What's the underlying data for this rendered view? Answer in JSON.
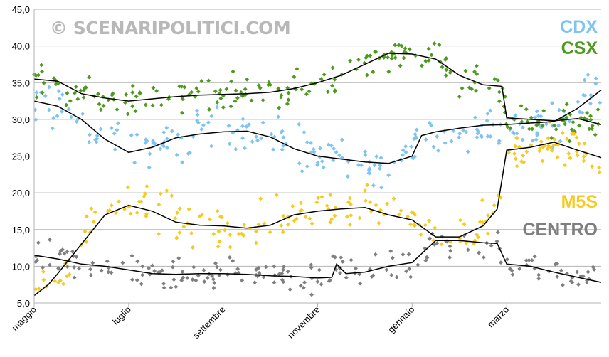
{
  "watermark": "© SCENARIPOLITICI.COM",
  "chart_data": {
    "type": "scatter",
    "title": "",
    "xlabel": "",
    "ylabel": "",
    "ylim": [
      5,
      45
    ],
    "y_ticks": [
      "5,0",
      "10,0",
      "15,0",
      "20,0",
      "25,0",
      "30,0",
      "35,0",
      "40,0",
      "45,0"
    ],
    "x_ticks": [
      "maggio",
      "luglio",
      "settembre",
      "novembre",
      "gennaio",
      "marzo"
    ],
    "x_domain_months": [
      0,
      12
    ],
    "x_tick_months": [
      0,
      2,
      4,
      6,
      8,
      10
    ],
    "grid": "horizontal",
    "legend_placement": "right",
    "series": [
      {
        "name": "CDX",
        "color": "#7fc4f0",
        "trend": [
          [
            0,
            32.5
          ],
          [
            0.5,
            31.8
          ],
          [
            1,
            30
          ],
          [
            1.5,
            27.3
          ],
          [
            2,
            25.5
          ],
          [
            2.5,
            26.2
          ],
          [
            3,
            27.5
          ],
          [
            3.5,
            28
          ],
          [
            4,
            28.3
          ],
          [
            4.5,
            28.4
          ],
          [
            5,
            27.6
          ],
          [
            5.5,
            26
          ],
          [
            6,
            25
          ],
          [
            6.5,
            24.6
          ],
          [
            7,
            24.2
          ],
          [
            7.5,
            24
          ],
          [
            8,
            25
          ],
          [
            8.2,
            27.8
          ],
          [
            8.5,
            28.3
          ],
          [
            9,
            28.8
          ],
          [
            9.5,
            29.2
          ],
          [
            10,
            29.3
          ],
          [
            10.5,
            29.5
          ],
          [
            11,
            29.7
          ],
          [
            11.5,
            31.5
          ],
          [
            12,
            34
          ]
        ]
      },
      {
        "name": "CSX",
        "color": "#4e9a1e",
        "trend": [
          [
            0,
            35.5
          ],
          [
            0.5,
            35.2
          ],
          [
            1,
            33.5
          ],
          [
            1.5,
            32.9
          ],
          [
            2,
            32.5
          ],
          [
            2.5,
            32.8
          ],
          [
            3,
            33.1
          ],
          [
            3.5,
            33.3
          ],
          [
            4,
            33.4
          ],
          [
            4.5,
            33.5
          ],
          [
            5,
            33.7
          ],
          [
            5.5,
            34.2
          ],
          [
            6,
            35
          ],
          [
            6.5,
            36
          ],
          [
            7,
            37.5
          ],
          [
            7.5,
            39
          ],
          [
            8,
            38.9
          ],
          [
            8.5,
            38.2
          ],
          [
            9,
            36
          ],
          [
            9.5,
            34.7
          ],
          [
            9.9,
            34.5
          ],
          [
            10,
            30.2
          ],
          [
            10.5,
            30
          ],
          [
            11,
            29.8
          ],
          [
            11.5,
            30.1
          ],
          [
            12,
            29.3
          ]
        ]
      },
      {
        "name": "M5S",
        "color": "#f5cb1f",
        "trend": [
          [
            0,
            6
          ],
          [
            0.3,
            7.5
          ],
          [
            0.5,
            9
          ],
          [
            1,
            13
          ],
          [
            1.5,
            17
          ],
          [
            2,
            18.3
          ],
          [
            2.5,
            17.5
          ],
          [
            3,
            16
          ],
          [
            3.5,
            15.6
          ],
          [
            4,
            15.5
          ],
          [
            4.5,
            15.2
          ],
          [
            5,
            15.6
          ],
          [
            5.5,
            17
          ],
          [
            6,
            17.5
          ],
          [
            6.5,
            17.8
          ],
          [
            7,
            18
          ],
          [
            7.5,
            17
          ],
          [
            8,
            16.3
          ],
          [
            8.5,
            14
          ],
          [
            9,
            14
          ],
          [
            9.5,
            15.5
          ],
          [
            9.8,
            17.8
          ],
          [
            10,
            25.8
          ],
          [
            10.5,
            26.2
          ],
          [
            11,
            26.9
          ],
          [
            11.5,
            25.8
          ],
          [
            12,
            24.8
          ]
        ]
      },
      {
        "name": "CENTRO",
        "color": "#7f7f7f",
        "trend": [
          [
            0,
            11.5
          ],
          [
            0.5,
            11
          ],
          [
            1,
            10.3
          ],
          [
            1.5,
            10
          ],
          [
            2,
            9.5
          ],
          [
            2.5,
            9
          ],
          [
            3,
            8.9
          ],
          [
            3.5,
            9
          ],
          [
            4,
            9
          ],
          [
            4.5,
            8.9
          ],
          [
            5,
            8.7
          ],
          [
            5.5,
            8.6
          ],
          [
            6,
            8.4
          ],
          [
            6.3,
            8.5
          ],
          [
            6.4,
            10.3
          ],
          [
            6.6,
            9
          ],
          [
            7,
            9.2
          ],
          [
            7.5,
            10
          ],
          [
            8,
            10.5
          ],
          [
            8.5,
            13.5
          ],
          [
            9,
            13.5
          ],
          [
            9.5,
            13.2
          ],
          [
            9.8,
            13.1
          ],
          [
            10,
            10.3
          ],
          [
            10.5,
            10
          ],
          [
            11,
            9.2
          ],
          [
            11.5,
            8.5
          ],
          [
            12,
            7.8
          ]
        ]
      }
    ]
  },
  "legend_labels": {
    "cdx": "CDX",
    "csx": "CSX",
    "m5s": "M5S",
    "centro": "CENTRO"
  }
}
